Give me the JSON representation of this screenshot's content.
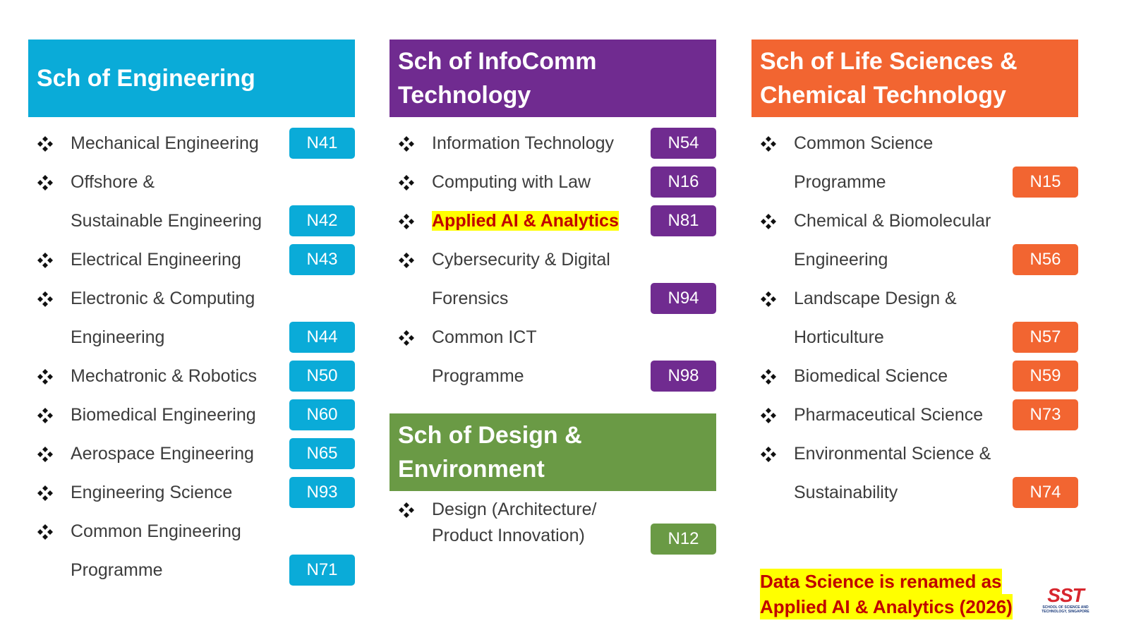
{
  "columns": [
    {
      "schools": [
        {
          "title": "Sch of Engineering",
          "color": "#0aabd8",
          "courses": [
            {
              "lines": [
                "Mechanical Engineering"
              ],
              "code": "N41"
            },
            {
              "lines": [
                "Offshore &",
                "Sustainable Engineering"
              ],
              "code": "N42"
            },
            {
              "lines": [
                "Electrical Engineering"
              ],
              "code": "N43"
            },
            {
              "lines": [
                "Electronic & Computing",
                "Engineering"
              ],
              "code": "N44"
            },
            {
              "lines": [
                "Mechatronic & Robotics"
              ],
              "code": "N50"
            },
            {
              "lines": [
                "Biomedical Engineering"
              ],
              "code": "N60"
            },
            {
              "lines": [
                "Aerospace Engineering"
              ],
              "code": "N65"
            },
            {
              "lines": [
                "Engineering Science"
              ],
              "code": "N93"
            },
            {
              "lines": [
                "Common Engineering",
                "Programme"
              ],
              "code": "N71"
            }
          ]
        }
      ]
    },
    {
      "schools": [
        {
          "title": "Sch of InfoComm Technology",
          "color": "#702b90",
          "courses": [
            {
              "lines": [
                "Information Technology"
              ],
              "code": "N54"
            },
            {
              "lines": [
                "Computing with Law"
              ],
              "code": "N16"
            },
            {
              "lines": [
                "Applied AI & Analytics"
              ],
              "code": "N81",
              "highlight": true
            },
            {
              "lines": [
                "Cybersecurity & Digital",
                "Forensics"
              ],
              "code": "N94"
            },
            {
              "lines": [
                "Common ICT",
                "Programme"
              ],
              "code": "N98"
            }
          ]
        },
        {
          "title": "Sch of Design & Environment",
          "color": "#6a9a45",
          "compact": true,
          "courses": [
            {
              "lines": [
                "Design (Architecture/",
                "Product Innovation)"
              ],
              "code": "N12"
            }
          ]
        }
      ]
    },
    {
      "schools": [
        {
          "title": "Sch of Life Sciences & Chemical Technology",
          "color": "#f26531",
          "courses": [
            {
              "lines": [
                "Common Science",
                "Programme"
              ],
              "code": "N15"
            },
            {
              "lines": [
                "Chemical & Biomolecular",
                "Engineering"
              ],
              "code": "N56"
            },
            {
              "lines": [
                "Landscape Design &",
                "Horticulture"
              ],
              "code": "N57"
            },
            {
              "lines": [
                "Biomedical Science"
              ],
              "code": "N59"
            },
            {
              "lines": [
                "Pharmaceutical Science"
              ],
              "code": "N73"
            },
            {
              "lines": [
                "Environmental Science &",
                "Sustainability"
              ],
              "code": "N74"
            }
          ]
        }
      ]
    }
  ],
  "note": {
    "lines": [
      "Data Science is renamed as",
      "Applied AI & Analytics (2026)"
    ]
  },
  "logo": {
    "mark": "SST",
    "lines": [
      "SCHOOL OF SCIENCE AND",
      "TECHNOLOGY, SINGAPORE"
    ]
  }
}
